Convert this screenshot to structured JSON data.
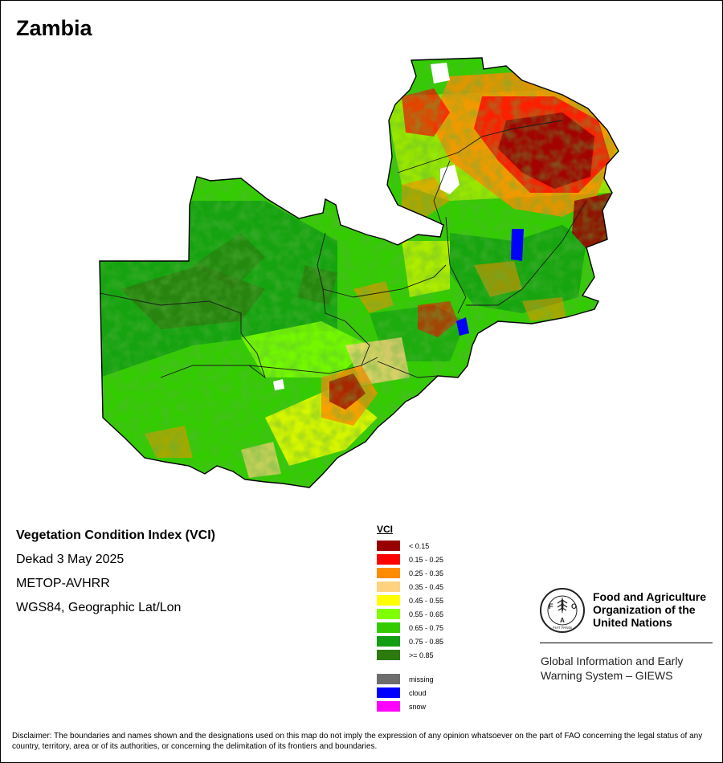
{
  "title": "Zambia",
  "info": {
    "product": "Vegetation Condition Index (VCI)",
    "period": "Dekad 3 May 2025",
    "sensor": "METOP-AVHRR",
    "projection": "WGS84, Geographic Lat/Lon"
  },
  "legend": {
    "title": "VCI",
    "classes": [
      {
        "label": "< 0.15",
        "color": "#990000"
      },
      {
        "label": "0.15 - 0.25",
        "color": "#ff0000"
      },
      {
        "label": "0.25 - 0.35",
        "color": "#ff8c00"
      },
      {
        "label": "0.35 - 0.45",
        "color": "#ffd27f"
      },
      {
        "label": "0.45 - 0.55",
        "color": "#ffff00"
      },
      {
        "label": "0.55 - 0.65",
        "color": "#7fff00"
      },
      {
        "label": "0.65 - 0.75",
        "color": "#33cc00"
      },
      {
        "label": "0.75 - 0.85",
        "color": "#129e12"
      },
      {
        "label": ">= 0.85",
        "color": "#2d7a0f"
      }
    ],
    "special": [
      {
        "label": "missing",
        "color": "#6e6e6e"
      },
      {
        "label": "cloud",
        "color": "#0000ff"
      },
      {
        "label": "snow",
        "color": "#ff00ff"
      }
    ]
  },
  "organization": {
    "logo_text": "FAO",
    "logo_motto": "FIAT PANIS",
    "name_lines": [
      "Food and Agriculture",
      "Organization of the",
      "United Nations"
    ],
    "program_lines": [
      "Global Information and Early",
      "Warning System – GIEWS"
    ]
  },
  "disclaimer": "Disclaimer: The boundaries and names shown and the designations used on this map do not imply the expression of any opinion whatsoever on the part of FAO concerning the legal status of any country, territory, area or of its authorities, or concerning the delimitation of its frontiers and boundaries."
}
